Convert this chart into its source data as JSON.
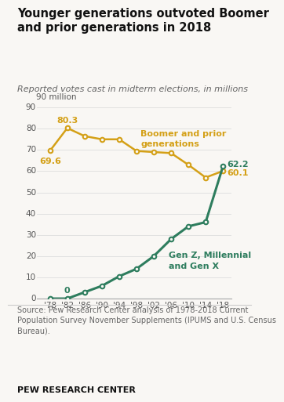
{
  "title": "Younger generations outvoted Boomer\nand prior generations in 2018",
  "subtitle": "Reported votes cast in midterm elections, in millions",
  "source_text": "Source: Pew Research Center analysis of 1978-2018 Current\nPopulation Survey November Supplements (IPUMS and U.S. Census\nBureau).",
  "footer": "PEW RESEARCH CENTER",
  "years": [
    1978,
    1982,
    1986,
    1990,
    1994,
    1998,
    2002,
    2006,
    2010,
    2014,
    2018
  ],
  "boomer_prior": [
    69.6,
    80.3,
    76.5,
    75.0,
    75.0,
    69.5,
    69.0,
    68.5,
    63.0,
    57.0,
    60.1
  ],
  "gen_zyx": [
    0,
    0,
    3.0,
    6.0,
    10.5,
    14.0,
    20.0,
    28.0,
    34.0,
    36.0,
    62.2
  ],
  "boomer_color": "#D4A017",
  "gen_color": "#2E7D5E",
  "ylim": [
    0,
    90
  ],
  "yticks": [
    0,
    10,
    20,
    30,
    40,
    50,
    60,
    70,
    80,
    90
  ],
  "ylabel_top": "90 million",
  "annotate_boomer_1978": "69.6",
  "annotate_boomer_1982": "80.3",
  "annotate_gen_1982": "0",
  "annotate_gen_2018": "62.2",
  "annotate_boomer_2018": "60.1",
  "bg_color": "#f9f7f4",
  "tick_labels": [
    "'78",
    "'82",
    "'86",
    "'90",
    "'94",
    "'98",
    "'02",
    "'06",
    "'10",
    "'14",
    "'18"
  ]
}
